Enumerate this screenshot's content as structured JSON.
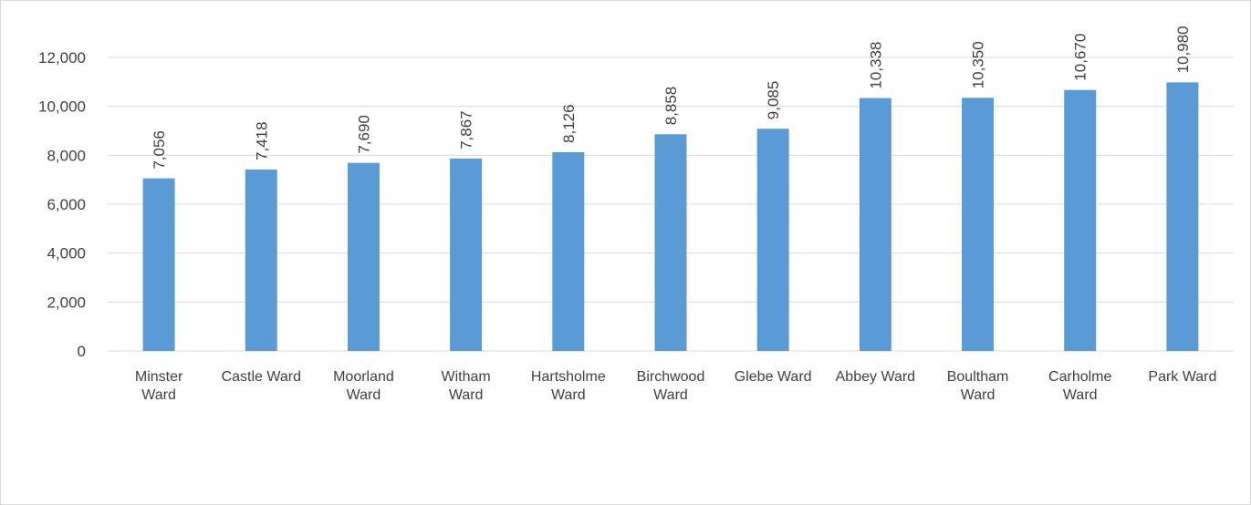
{
  "chart_data": {
    "type": "bar",
    "title": "",
    "xlabel": "",
    "ylabel": "",
    "categories": [
      [
        "Minster",
        "Ward"
      ],
      [
        "Castle Ward"
      ],
      [
        "Moorland",
        "Ward"
      ],
      [
        "Witham",
        "Ward"
      ],
      [
        "Hartsholme",
        "Ward"
      ],
      [
        "Birchwood",
        "Ward"
      ],
      [
        "Glebe Ward"
      ],
      [
        "Abbey Ward"
      ],
      [
        "Boultham",
        "Ward"
      ],
      [
        "Carholme",
        "Ward"
      ],
      [
        "Park Ward"
      ]
    ],
    "values": [
      7056,
      7418,
      7690,
      7867,
      8126,
      8858,
      9085,
      10338,
      10350,
      10670,
      10980
    ],
    "value_labels": [
      "7,056",
      "7,418",
      "7,690",
      "7,867",
      "8,126",
      "8,858",
      "9,085",
      "10,338",
      "10,350",
      "10,670",
      "10,980"
    ],
    "ylim": [
      0,
      12000
    ],
    "yticks": [
      0,
      2000,
      4000,
      6000,
      8000,
      10000,
      12000
    ],
    "ytick_labels": [
      "0",
      "2,000",
      "4,000",
      "6,000",
      "8,000",
      "10,000",
      "12,000"
    ],
    "grid": true,
    "legend": "none",
    "bar_color": "#5b9bd5",
    "grid_color": "#d9d9d9"
  }
}
